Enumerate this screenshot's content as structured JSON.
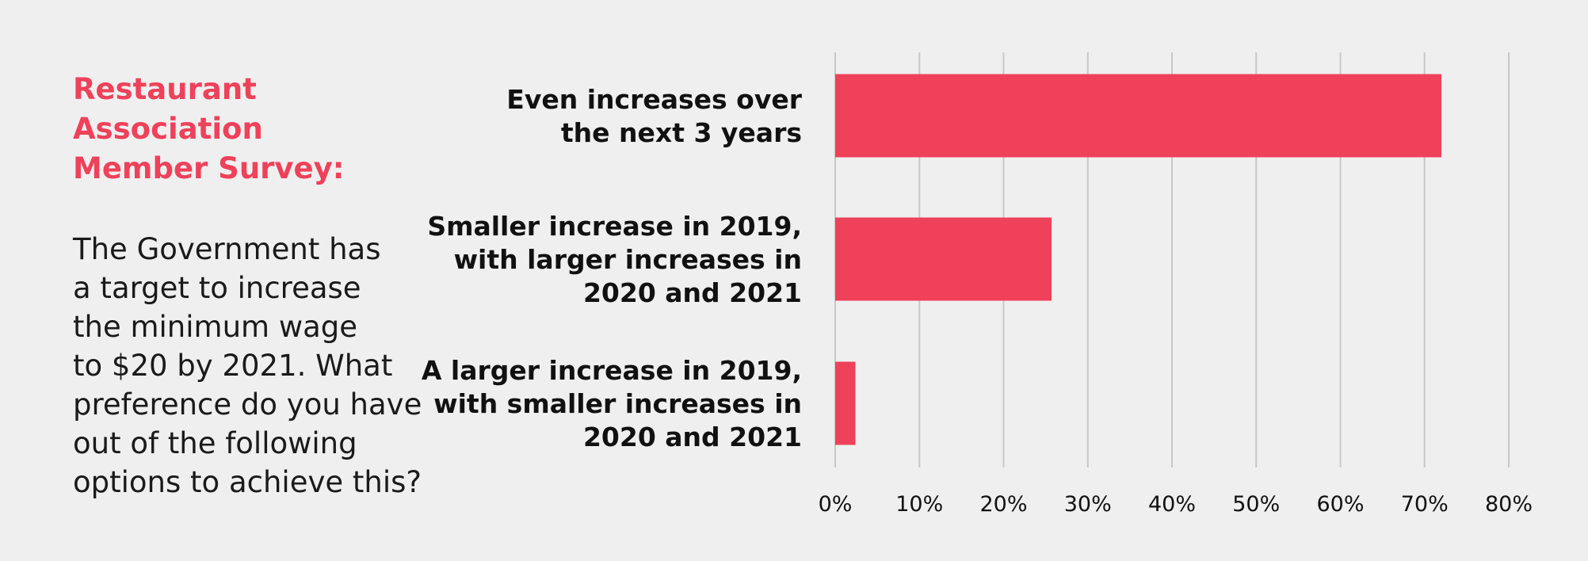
{
  "intro": {
    "title": "Restaurant Association\nMember Survey:",
    "question": "The Government has\na target to increase\nthe minimum wage\nto $20 by 2021. What\npreference do you have\nout of the following\noptions to achieve this?"
  },
  "colors": {
    "bar": "#ef415a",
    "grid": "#c8c8c8",
    "background": "#efefef"
  },
  "chart_data": {
    "type": "bar",
    "orientation": "horizontal",
    "categories": [
      "Even increases over the next 3 years",
      "Smaller increase in 2019, with larger increases in 2020 and 2021",
      "A larger increase in 2019, with smaller increases in 2020 and 2021"
    ],
    "category_lines": [
      [
        "Even increases over",
        "the next 3 years"
      ],
      [
        "Smaller increase in 2019,",
        "with larger increases in",
        "2020 and 2021"
      ],
      [
        "A larger increase in 2019,",
        "with smaller increases in",
        "2020 and 2021"
      ]
    ],
    "values": [
      72,
      25.7,
      2.4
    ],
    "xlim": [
      0,
      80
    ],
    "xticks": [
      0,
      10,
      20,
      30,
      40,
      50,
      60,
      70,
      80
    ],
    "xtick_labels": [
      "0%",
      "10%",
      "20%",
      "30%",
      "40%",
      "50%",
      "60%",
      "70%",
      "80%"
    ],
    "grid": true
  }
}
